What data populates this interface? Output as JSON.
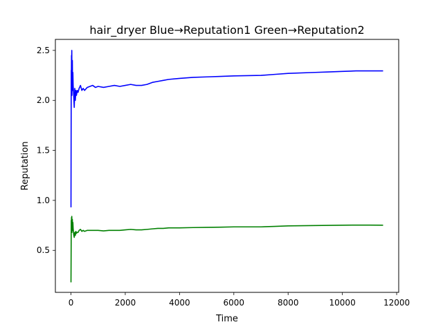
{
  "chart_data": {
    "type": "line",
    "title": "hair_dryer Blue→Reputation1 Green→Reputation2",
    "xlabel": "Time",
    "ylabel": "Reputation",
    "xlim": [
      -575,
      12075
    ],
    "ylim": [
      0.08,
      2.61
    ],
    "xticks": [
      0,
      2000,
      4000,
      6000,
      8000,
      10000,
      12000
    ],
    "yticks": [
      0.5,
      1.0,
      1.5,
      2.0,
      2.5
    ],
    "ytick_labels": [
      "0.5",
      "1.0",
      "1.5",
      "2.0",
      "2.5"
    ],
    "grid": false,
    "series": [
      {
        "color": "#0000ff",
        "x": [
          0,
          5,
          10,
          15,
          20,
          25,
          30,
          35,
          40,
          50,
          60,
          70,
          80,
          100,
          120,
          140,
          160,
          180,
          200,
          230,
          260,
          300,
          350,
          400,
          450,
          500,
          600,
          700,
          800,
          900,
          1000,
          1200,
          1400,
          1600,
          1800,
          2000,
          2200,
          2400,
          2600,
          2800,
          3000,
          3200,
          3400,
          3600,
          4000,
          4500,
          5000,
          5500,
          6000,
          7000,
          7500,
          8000,
          9000,
          9500,
          10000,
          10500,
          11000,
          11500
        ],
        "y": [
          0.93,
          1.6,
          2.3,
          2.2,
          2.45,
          2.35,
          2.5,
          2.05,
          2.3,
          2.4,
          2.1,
          2.28,
          2.15,
          2.05,
          1.93,
          2.12,
          2.0,
          2.1,
          2.05,
          2.1,
          2.08,
          2.12,
          2.15,
          2.1,
          2.12,
          2.1,
          2.13,
          2.14,
          2.15,
          2.13,
          2.14,
          2.13,
          2.14,
          2.15,
          2.14,
          2.15,
          2.16,
          2.15,
          2.15,
          2.16,
          2.18,
          2.19,
          2.2,
          2.21,
          2.22,
          2.23,
          2.235,
          2.24,
          2.245,
          2.25,
          2.26,
          2.27,
          2.28,
          2.285,
          2.29,
          2.295,
          2.295,
          2.295
        ]
      },
      {
        "color": "#008000",
        "x": [
          0,
          5,
          10,
          15,
          20,
          25,
          30,
          35,
          40,
          50,
          60,
          70,
          80,
          100,
          120,
          140,
          160,
          180,
          200,
          230,
          260,
          300,
          350,
          400,
          450,
          500,
          600,
          700,
          800,
          900,
          1000,
          1200,
          1400,
          1600,
          1800,
          2000,
          2200,
          2400,
          2600,
          2800,
          3000,
          3200,
          3400,
          3600,
          4000,
          4500,
          5000,
          5500,
          6000,
          7000,
          7500,
          8000,
          9000,
          9500,
          10000,
          10500,
          11000,
          11500
        ],
        "y": [
          0.18,
          0.45,
          0.8,
          0.74,
          0.83,
          0.78,
          0.84,
          0.68,
          0.78,
          0.81,
          0.7,
          0.78,
          0.72,
          0.66,
          0.63,
          0.68,
          0.65,
          0.69,
          0.67,
          0.68,
          0.68,
          0.7,
          0.71,
          0.69,
          0.7,
          0.69,
          0.7,
          0.7,
          0.7,
          0.7,
          0.7,
          0.695,
          0.7,
          0.7,
          0.7,
          0.705,
          0.71,
          0.705,
          0.705,
          0.71,
          0.715,
          0.72,
          0.72,
          0.725,
          0.725,
          0.728,
          0.73,
          0.732,
          0.735,
          0.735,
          0.74,
          0.745,
          0.748,
          0.75,
          0.752,
          0.753,
          0.753,
          0.752
        ]
      }
    ]
  }
}
